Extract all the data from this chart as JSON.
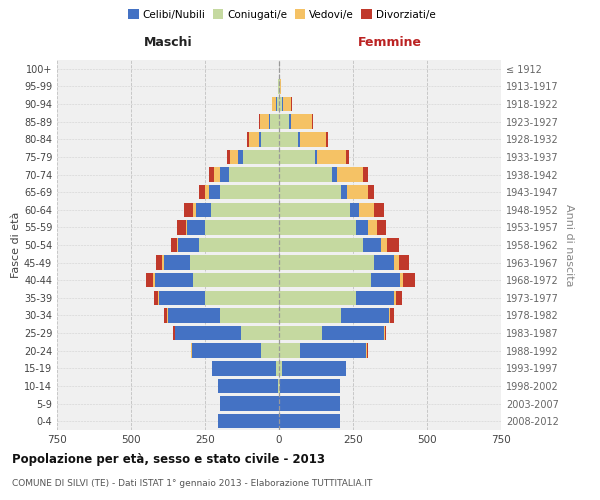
{
  "age_groups": [
    "0-4",
    "5-9",
    "10-14",
    "15-19",
    "20-24",
    "25-29",
    "30-34",
    "35-39",
    "40-44",
    "45-49",
    "50-54",
    "55-59",
    "60-64",
    "65-69",
    "70-74",
    "75-79",
    "80-84",
    "85-89",
    "90-94",
    "95-99",
    "100+"
  ],
  "birth_years": [
    "2008-2012",
    "2003-2007",
    "1998-2002",
    "1993-1997",
    "1988-1992",
    "1983-1987",
    "1978-1982",
    "1973-1977",
    "1968-1972",
    "1963-1967",
    "1958-1962",
    "1953-1957",
    "1948-1952",
    "1943-1947",
    "1938-1942",
    "1933-1937",
    "1928-1932",
    "1923-1927",
    "1918-1922",
    "1913-1917",
    "≤ 1912"
  ],
  "maschi": {
    "celibi": [
      205,
      200,
      205,
      215,
      235,
      220,
      175,
      155,
      130,
      90,
      70,
      60,
      50,
      35,
      30,
      20,
      8,
      5,
      2,
      0,
      0
    ],
    "coniugati": [
      0,
      0,
      2,
      10,
      60,
      130,
      200,
      250,
      290,
      300,
      270,
      250,
      230,
      200,
      170,
      120,
      60,
      30,
      8,
      2,
      0
    ],
    "vedovi": [
      0,
      0,
      0,
      0,
      2,
      2,
      2,
      3,
      5,
      5,
      5,
      5,
      10,
      15,
      20,
      25,
      35,
      30,
      15,
      2,
      0
    ],
    "divorziati": [
      0,
      0,
      0,
      0,
      0,
      5,
      10,
      15,
      25,
      20,
      20,
      30,
      30,
      20,
      15,
      10,
      5,
      2,
      0,
      0,
      0
    ]
  },
  "femmine": {
    "nubili": [
      205,
      205,
      205,
      215,
      225,
      210,
      160,
      130,
      100,
      70,
      60,
      40,
      30,
      20,
      15,
      10,
      5,
      5,
      2,
      0,
      0
    ],
    "coniugate": [
      0,
      0,
      2,
      10,
      70,
      145,
      210,
      260,
      310,
      320,
      285,
      260,
      240,
      210,
      180,
      120,
      65,
      35,
      10,
      2,
      0
    ],
    "vedove": [
      0,
      0,
      0,
      0,
      2,
      3,
      5,
      5,
      10,
      15,
      20,
      30,
      50,
      70,
      90,
      95,
      90,
      70,
      30,
      5,
      0
    ],
    "divorziate": [
      0,
      0,
      0,
      0,
      2,
      5,
      15,
      20,
      40,
      35,
      40,
      30,
      35,
      20,
      15,
      10,
      5,
      5,
      2,
      0,
      0
    ]
  },
  "colors": {
    "celibi": "#4472c4",
    "coniugati": "#c5d9a0",
    "vedovi": "#f5c265",
    "divorziati": "#c0392b"
  },
  "legend_labels": [
    "Celibi/Nubili",
    "Coniugati/e",
    "Vedovi/e",
    "Divorziati/e"
  ],
  "xlim": 750,
  "title": "Popolazione per età, sesso e stato civile - 2013",
  "subtitle": "COMUNE DI SILVI (TE) - Dati ISTAT 1° gennaio 2013 - Elaborazione TUTTITALIA.IT",
  "xlabel_left": "Maschi",
  "xlabel_right": "Femmine",
  "ylabel": "Fasce di età",
  "ylabel_right": "Anni di nascita",
  "bg_color": "#f0f0f0",
  "grid_color": "#cccccc"
}
